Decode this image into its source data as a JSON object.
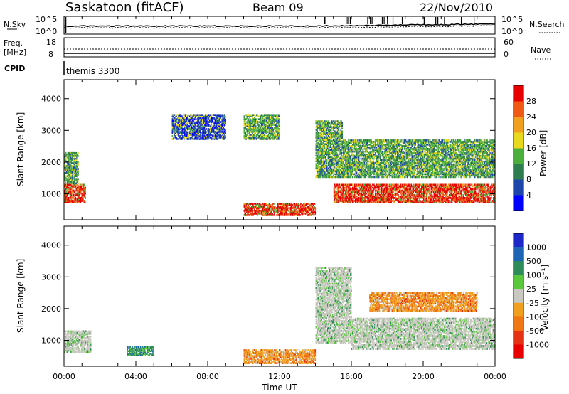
{
  "header": {
    "station": "Saskatoon (fitACF)",
    "beam": "Beam 09",
    "date": "22/Nov/2010"
  },
  "top_panels": {
    "nsky_label": "N.Sky",
    "nsky_ticks": [
      "10^5",
      "10^0"
    ],
    "nsearch_label": "N.Search",
    "nsearch_ticks": [
      "10^5",
      "10^0"
    ],
    "freq_label": "Freq.",
    "freq_unit": "[MHz]",
    "freq_ticks": [
      "18",
      "8"
    ],
    "nave_label": "Nave",
    "nave_ticks": [
      "60",
      "0"
    ],
    "cpid_label": "CPID",
    "cpid_value": "themis 3300"
  },
  "chart_data": [
    {
      "type": "heatmap",
      "panel": "power",
      "ylabel": "Slant Range [km]",
      "ylim": [
        180,
        4600
      ],
      "yticks": [
        1000,
        2000,
        3000,
        4000
      ],
      "xlim": [
        0,
        24
      ],
      "colorbar_label": "Power [dB]",
      "colorbar": {
        "ticks": [
          "4",
          "8",
          "12",
          "16",
          "20",
          "24",
          "28"
        ],
        "colors": [
          "#0000ff",
          "#1e46aa",
          "#2e7d4f",
          "#4cae3c",
          "#e8d81e",
          "#f0a01e",
          "#f05a14",
          "#e60000"
        ]
      },
      "regions": [
        {
          "t": [
            0.0,
            1.2
          ],
          "range": [
            700,
            1300
          ],
          "level": "high"
        },
        {
          "t": [
            0.0,
            0.8
          ],
          "range": [
            1300,
            2300
          ],
          "level": "mid"
        },
        {
          "t": [
            6.0,
            9.0
          ],
          "range": [
            2700,
            3500
          ],
          "level": "low"
        },
        {
          "t": [
            10.0,
            12.0
          ],
          "range": [
            2700,
            3500
          ],
          "level": "mid"
        },
        {
          "t": [
            10.0,
            14.0
          ],
          "range": [
            300,
            700
          ],
          "level": "high"
        },
        {
          "t": [
            14.0,
            15.5
          ],
          "range": [
            1500,
            3300
          ],
          "level": "mid"
        },
        {
          "t": [
            15.0,
            24.0
          ],
          "range": [
            700,
            1300
          ],
          "level": "high"
        },
        {
          "t": [
            15.5,
            24.0
          ],
          "range": [
            1500,
            2700
          ],
          "level": "mid"
        }
      ]
    },
    {
      "type": "heatmap",
      "panel": "velocity",
      "ylabel": "Slant Range [km]",
      "ylim": [
        180,
        4600
      ],
      "yticks": [
        1000,
        2000,
        3000,
        4000
      ],
      "xlim": [
        0,
        24
      ],
      "xticks": [
        "00:00",
        "04:00",
        "08:00",
        "12:00",
        "16:00",
        "20:00",
        "00:00"
      ],
      "xlabel": "Time UT",
      "colorbar_label": "Velocity [m s⁻¹]",
      "colorbar": {
        "ticks": [
          "1000",
          "500",
          "100",
          "25",
          "-25",
          "-100",
          "-500",
          "-1000"
        ],
        "colors": [
          "#1e28c8",
          "#1e64b4",
          "#2e8c5a",
          "#5ac83c",
          "#c8c8c0",
          "#f0a01e",
          "#f07814",
          "#e63214",
          "#e60000"
        ]
      },
      "regions": [
        {
          "t": [
            0.0,
            1.5
          ],
          "range": [
            600,
            1300
          ],
          "level": "ground"
        },
        {
          "t": [
            3.5,
            5.0
          ],
          "range": [
            500,
            800
          ],
          "level": "toward"
        },
        {
          "t": [
            10.0,
            14.0
          ],
          "range": [
            250,
            700
          ],
          "level": "away"
        },
        {
          "t": [
            14.0,
            16.0
          ],
          "range": [
            900,
            3300
          ],
          "level": "ground"
        },
        {
          "t": [
            16.0,
            24.0
          ],
          "range": [
            700,
            1700
          ],
          "level": "ground"
        },
        {
          "t": [
            17.0,
            23.0
          ],
          "range": [
            1900,
            2500
          ],
          "level": "away"
        }
      ]
    }
  ]
}
